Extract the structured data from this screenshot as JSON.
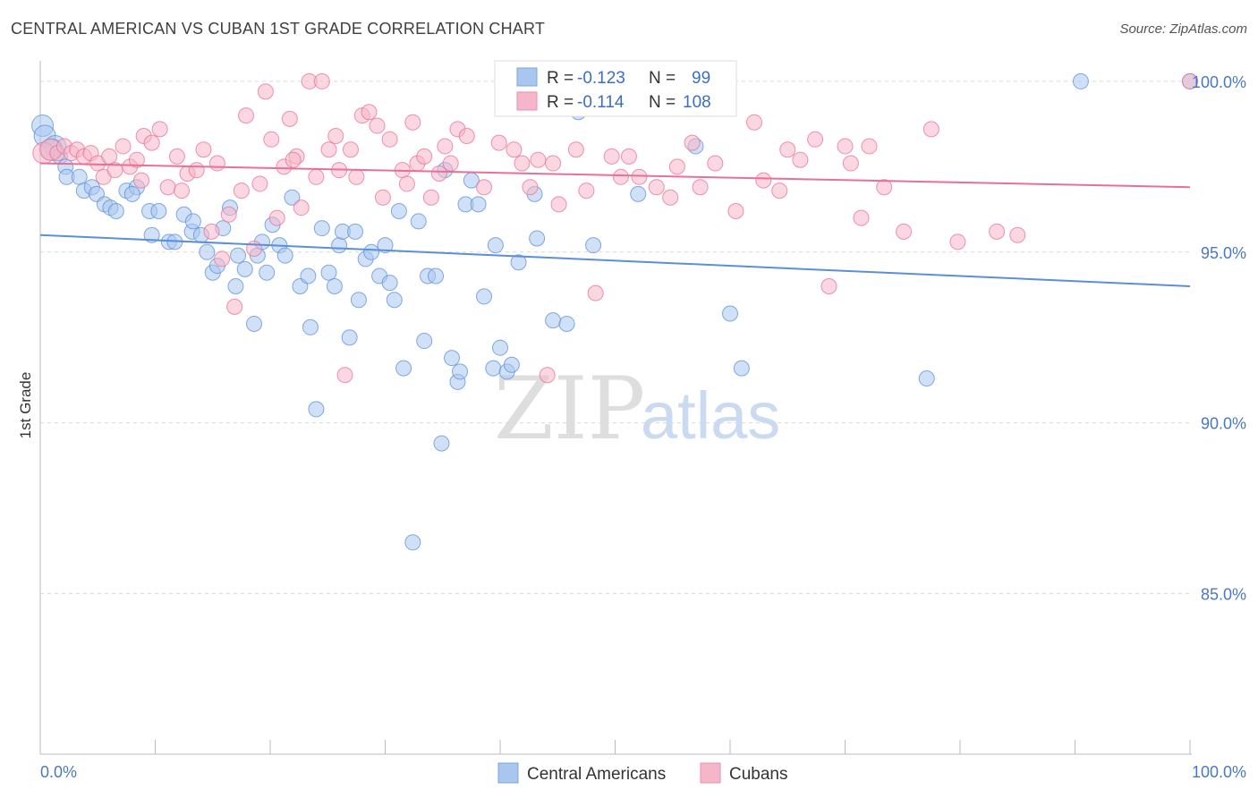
{
  "header": {
    "title": "CENTRAL AMERICAN VS CUBAN 1ST GRADE CORRELATION CHART",
    "source": "Source: ZipAtlas.com"
  },
  "watermark": {
    "zip": "ZIP",
    "atlas": "atlas"
  },
  "legend": {
    "rows": [
      {
        "r_label": "R = ",
        "r_value": "-0.123",
        "n_label": "N = ",
        "n_value": "99",
        "color": "#a9c7ee"
      },
      {
        "r_label": "R = ",
        "r_value": "-0.114",
        "n_label": "N = ",
        "n_value": "108",
        "color": "#f5b6c9"
      }
    ]
  },
  "bottom_legend": [
    {
      "label": "Central Americans",
      "color": "#a9c7ee"
    },
    {
      "label": "Cubans",
      "color": "#f5b6c9"
    }
  ],
  "chart_data": {
    "type": "scatter",
    "title": "CENTRAL AMERICAN VS CUBAN 1ST GRADE CORRELATION CHART",
    "xlabel": "",
    "ylabel": "1st Grade",
    "xlim": [
      0,
      100
    ],
    "ylim": [
      80.3,
      100.6
    ],
    "x_tick_labels": [
      "0.0%",
      "100.0%"
    ],
    "y_ticks": [
      100,
      95,
      90,
      85
    ],
    "y_tick_labels": [
      "100.0%",
      "95.0%",
      "90.0%",
      "85.0%"
    ],
    "grid": "horizontal dashed",
    "legend_position": "top-center",
    "series": [
      {
        "name": "Central Americans",
        "color": "#5b8fd9",
        "fill": "#a9c7ee",
        "r": -0.123,
        "n": 99,
        "trend": {
          "x": [
            0,
            100
          ],
          "y": [
            95.5,
            94.0
          ]
        },
        "points": [
          [
            0.2,
            98.7
          ],
          [
            0.4,
            98.4
          ],
          [
            1.3,
            98.1
          ],
          [
            1.7,
            97.8
          ],
          [
            2.2,
            97.5
          ],
          [
            2.3,
            97.2
          ],
          [
            3.4,
            97.2
          ],
          [
            3.8,
            96.8
          ],
          [
            4.5,
            96.9
          ],
          [
            4.9,
            96.7
          ],
          [
            5.6,
            96.4
          ],
          [
            6.1,
            96.3
          ],
          [
            6.6,
            96.2
          ],
          [
            7.5,
            96.8
          ],
          [
            8.4,
            96.9
          ],
          [
            8.0,
            96.7
          ],
          [
            9.5,
            96.2
          ],
          [
            10.3,
            96.2
          ],
          [
            9.7,
            95.5
          ],
          [
            11.2,
            95.3
          ],
          [
            11.7,
            95.3
          ],
          [
            12.5,
            96.1
          ],
          [
            13.2,
            95.6
          ],
          [
            13.3,
            95.9
          ],
          [
            14.0,
            95.5
          ],
          [
            14.5,
            95.0
          ],
          [
            15.0,
            94.4
          ],
          [
            15.4,
            94.6
          ],
          [
            15.9,
            95.7
          ],
          [
            16.5,
            96.3
          ],
          [
            17.0,
            94.0
          ],
          [
            17.2,
            94.9
          ],
          [
            17.8,
            94.5
          ],
          [
            18.6,
            92.9
          ],
          [
            18.9,
            94.9
          ],
          [
            19.3,
            95.3
          ],
          [
            19.7,
            94.4
          ],
          [
            20.2,
            95.8
          ],
          [
            20.8,
            95.2
          ],
          [
            21.3,
            94.9
          ],
          [
            21.9,
            96.6
          ],
          [
            22.6,
            94.0
          ],
          [
            23.3,
            94.3
          ],
          [
            23.5,
            92.8
          ],
          [
            24.0,
            90.4
          ],
          [
            24.5,
            95.7
          ],
          [
            25.1,
            94.4
          ],
          [
            25.6,
            94.0
          ],
          [
            26.0,
            95.2
          ],
          [
            26.3,
            95.6
          ],
          [
            26.9,
            92.5
          ],
          [
            27.4,
            95.6
          ],
          [
            27.7,
            93.6
          ],
          [
            28.3,
            94.8
          ],
          [
            28.8,
            95.0
          ],
          [
            29.5,
            94.3
          ],
          [
            30.0,
            95.2
          ],
          [
            30.4,
            94.1
          ],
          [
            30.8,
            93.6
          ],
          [
            31.2,
            96.2
          ],
          [
            31.6,
            91.6
          ],
          [
            32.4,
            86.5
          ],
          [
            32.9,
            95.9
          ],
          [
            33.4,
            92.4
          ],
          [
            33.7,
            94.3
          ],
          [
            34.4,
            94.3
          ],
          [
            34.9,
            89.4
          ],
          [
            35.2,
            97.4
          ],
          [
            35.8,
            91.9
          ],
          [
            36.3,
            91.2
          ],
          [
            36.5,
            91.5
          ],
          [
            37.0,
            96.4
          ],
          [
            37.5,
            97.1
          ],
          [
            38.1,
            96.4
          ],
          [
            38.6,
            93.7
          ],
          [
            39.4,
            91.6
          ],
          [
            39.6,
            95.2
          ],
          [
            40.0,
            92.2
          ],
          [
            40.6,
            91.5
          ],
          [
            41.0,
            91.7
          ],
          [
            41.6,
            94.7
          ],
          [
            43.0,
            96.7
          ],
          [
            43.2,
            95.4
          ],
          [
            44.6,
            93.0
          ],
          [
            45.8,
            92.9
          ],
          [
            46.8,
            99.1
          ],
          [
            48.1,
            95.2
          ],
          [
            49.0,
            99.8
          ],
          [
            52.0,
            96.7
          ],
          [
            57.0,
            98.1
          ],
          [
            58.6,
            100.0
          ],
          [
            60.0,
            93.2
          ],
          [
            61.0,
            91.6
          ],
          [
            77.1,
            91.3
          ],
          [
            90.5,
            100.0
          ],
          [
            100.0,
            100.0
          ],
          [
            1.0,
            98.0
          ]
        ]
      },
      {
        "name": "Cubans",
        "color": "#e96f97",
        "fill": "#f5b6c9",
        "r": -0.114,
        "n": 108,
        "trend": {
          "x": [
            0,
            100
          ],
          "y": [
            97.6,
            96.9
          ]
        },
        "points": [
          [
            0.3,
            97.9
          ],
          [
            0.9,
            98.0
          ],
          [
            1.5,
            97.9
          ],
          [
            2.1,
            98.1
          ],
          [
            2.7,
            97.9
          ],
          [
            3.2,
            98.0
          ],
          [
            3.8,
            97.8
          ],
          [
            4.4,
            97.9
          ],
          [
            5.0,
            97.6
          ],
          [
            5.5,
            97.2
          ],
          [
            6.0,
            97.8
          ],
          [
            6.5,
            97.4
          ],
          [
            7.2,
            98.1
          ],
          [
            7.8,
            97.5
          ],
          [
            8.4,
            97.7
          ],
          [
            9.0,
            98.4
          ],
          [
            9.7,
            98.2
          ],
          [
            10.4,
            98.6
          ],
          [
            11.1,
            96.9
          ],
          [
            11.9,
            97.8
          ],
          [
            12.3,
            96.8
          ],
          [
            12.8,
            97.3
          ],
          [
            13.6,
            97.4
          ],
          [
            14.2,
            98.0
          ],
          [
            14.9,
            95.6
          ],
          [
            15.4,
            97.6
          ],
          [
            15.8,
            94.8
          ],
          [
            16.4,
            96.1
          ],
          [
            16.9,
            93.4
          ],
          [
            17.5,
            96.8
          ],
          [
            17.9,
            99.0
          ],
          [
            18.6,
            95.1
          ],
          [
            19.1,
            97.0
          ],
          [
            19.6,
            99.7
          ],
          [
            20.1,
            98.3
          ],
          [
            20.6,
            96.0
          ],
          [
            21.2,
            97.5
          ],
          [
            21.7,
            98.9
          ],
          [
            22.3,
            97.8
          ],
          [
            22.7,
            96.3
          ],
          [
            23.4,
            100.0
          ],
          [
            24.0,
            97.2
          ],
          [
            24.5,
            100.0
          ],
          [
            25.1,
            98.0
          ],
          [
            25.7,
            98.4
          ],
          [
            26.0,
            97.4
          ],
          [
            26.5,
            91.4
          ],
          [
            27.0,
            98.0
          ],
          [
            27.5,
            97.2
          ],
          [
            28.0,
            99.0
          ],
          [
            28.6,
            99.1
          ],
          [
            29.3,
            98.7
          ],
          [
            29.8,
            96.6
          ],
          [
            30.4,
            98.3
          ],
          [
            31.5,
            97.4
          ],
          [
            31.9,
            97.0
          ],
          [
            32.4,
            98.8
          ],
          [
            32.8,
            97.6
          ],
          [
            33.4,
            97.8
          ],
          [
            34.0,
            96.6
          ],
          [
            34.7,
            97.3
          ],
          [
            35.2,
            98.1
          ],
          [
            35.7,
            97.6
          ],
          [
            36.3,
            98.6
          ],
          [
            37.1,
            98.4
          ],
          [
            38.6,
            96.9
          ],
          [
            39.9,
            98.2
          ],
          [
            41.2,
            98.0
          ],
          [
            41.9,
            97.6
          ],
          [
            42.6,
            96.9
          ],
          [
            43.3,
            97.7
          ],
          [
            44.1,
            91.4
          ],
          [
            44.6,
            97.6
          ],
          [
            45.1,
            96.4
          ],
          [
            46.6,
            98.0
          ],
          [
            47.5,
            96.8
          ],
          [
            48.3,
            93.8
          ],
          [
            49.7,
            97.8
          ],
          [
            50.5,
            97.2
          ],
          [
            51.2,
            97.8
          ],
          [
            52.1,
            97.2
          ],
          [
            53.6,
            96.9
          ],
          [
            54.8,
            96.6
          ],
          [
            55.4,
            97.5
          ],
          [
            56.7,
            98.2
          ],
          [
            57.4,
            96.9
          ],
          [
            58.7,
            97.6
          ],
          [
            60.5,
            96.2
          ],
          [
            62.1,
            98.8
          ],
          [
            62.9,
            97.1
          ],
          [
            64.3,
            96.8
          ],
          [
            65.0,
            98.0
          ],
          [
            66.1,
            97.7
          ],
          [
            67.4,
            98.3
          ],
          [
            68.6,
            94.0
          ],
          [
            70.0,
            98.1
          ],
          [
            70.5,
            97.6
          ],
          [
            71.4,
            96.0
          ],
          [
            72.1,
            98.1
          ],
          [
            73.4,
            96.9
          ],
          [
            75.1,
            95.6
          ],
          [
            77.5,
            98.6
          ],
          [
            79.8,
            95.3
          ],
          [
            83.2,
            95.6
          ],
          [
            85.0,
            95.5
          ],
          [
            100.0,
            100.0
          ],
          [
            22.0,
            97.7
          ],
          [
            8.8,
            97.1
          ]
        ]
      }
    ]
  }
}
